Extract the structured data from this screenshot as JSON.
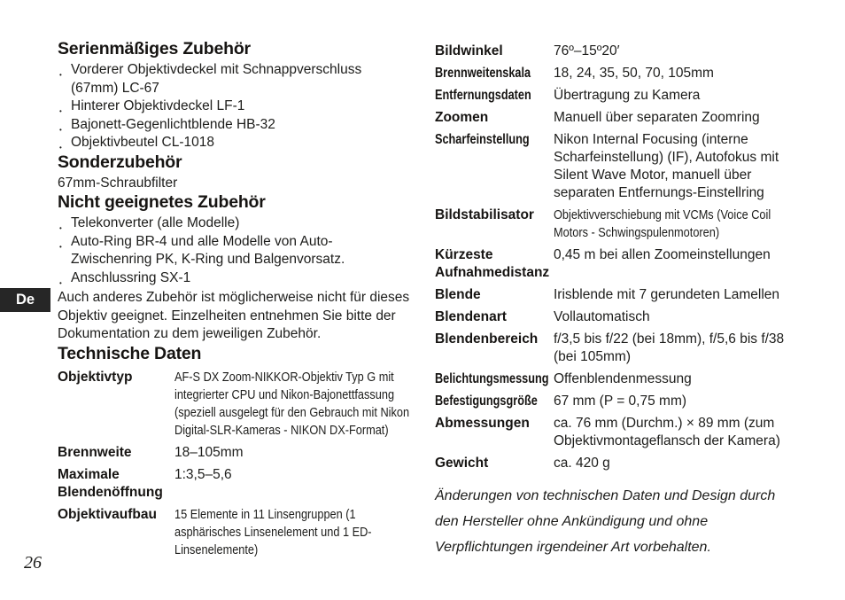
{
  "page": {
    "number": "26",
    "language_tab": "De",
    "colors": {
      "text": "#1d1d1b",
      "badge_bg": "#262626",
      "badge_text": "#ffffff",
      "background": "#ffffff"
    }
  },
  "left": {
    "standard_accessories": {
      "heading": "Serienmäßiges Zubehör",
      "bullets": [
        "Vorderer Objektivdeckel mit Schnappverschluss (67mm) LC-67",
        "Hinterer Objektivdeckel LF-1",
        "Bajonett-Gegenlichtblende HB-32",
        "Objektivbeutel CL-1018"
      ]
    },
    "optional_accessories": {
      "heading": "Sonderzubehör",
      "text": "67mm-Schraubfilter"
    },
    "incompatible_accessories": {
      "heading": "Nicht geeignetes Zubehör",
      "bullets": [
        "Telekonverter (alle Modelle)",
        "Auto-Ring BR-4 und alle Modelle von Auto-Zwischenring PK, K-Ring und Balgenvorsatz.",
        "Anschlussring SX-1"
      ],
      "note": "Auch anderes Zubehör ist möglicherweise nicht für dieses Objektiv geeignet. Einzelheiten entnehmen Sie bitte der Dokumentation zu dem jeweiligen Zubehör."
    },
    "technical_data": {
      "heading": "Technische Daten",
      "rows": [
        {
          "label": "Objektivtyp",
          "value": "AF-S DX Zoom-NIKKOR-Objektiv Typ G mit integrierter CPU und Nikon-Bajonettfassung (speziell ausgelegt für den Gebrauch mit Nikon Digital-SLR-Kameras - NIKON DX-Format)"
        },
        {
          "label": "Brennweite",
          "value": "18–105mm"
        },
        {
          "label": "Maximale Blendenöffnung",
          "value": "1:3,5–5,6"
        },
        {
          "label": "Objektivaufbau",
          "value": "15 Elemente in 11 Linsengruppen (1 asphärisches Linsenelement und 1 ED-Linsenelemente)"
        }
      ]
    }
  },
  "right": {
    "rows": [
      {
        "label": "Bildwinkel",
        "value": "76º–15º20′"
      },
      {
        "label": "Brennweitenskala",
        "value": "18, 24, 35, 50, 70, 105mm"
      },
      {
        "label": "Entfernungsdaten",
        "value": "Übertragung zu Kamera"
      },
      {
        "label": "Zoomen",
        "value": "Manuell über separaten Zoomring"
      },
      {
        "label": "Scharfeinstellung",
        "value": "Nikon Internal Focusing (interne Scharfeinstellung) (IF), Autofokus mit Silent Wave Motor, manuell über separaten Entfernungs-Einstellring"
      },
      {
        "label": "Bildstabilisator",
        "value": "Objektivverschiebung mit VCMs (Voice Coil Motors - Schwingspulenmotoren)"
      },
      {
        "label": "Kürzeste Aufnahmedistanz",
        "value": "0,45 m bei allen Zoomeinstellungen"
      },
      {
        "label": "Blende",
        "value": "Irisblende mit 7 gerundeten Lamellen"
      },
      {
        "label": "Blendenart",
        "value": "Vollautomatisch"
      },
      {
        "label": "Blendenbereich",
        "value": "f/3,5 bis f/22 (bei 18mm), f/5,6 bis f/38 (bei 105mm)"
      },
      {
        "label": "Belichtungsmessung",
        "value": "Offenblendenmessung"
      },
      {
        "label": "Befestigungsgröße",
        "value": "67 mm (P = 0,75 mm)"
      },
      {
        "label": "Abmessungen",
        "value": "ca. 76 mm (Durchm.) × 89 mm (zum Objektivmontageflansch der Kamera)"
      },
      {
        "label": "Gewicht",
        "value": "ca. 420 g"
      }
    ],
    "disclaimer": "Änderungen von technischen Daten und Design durch den Hersteller ohne Ankündigung und ohne Verpflichtungen irgendeiner Art vorbehalten."
  }
}
